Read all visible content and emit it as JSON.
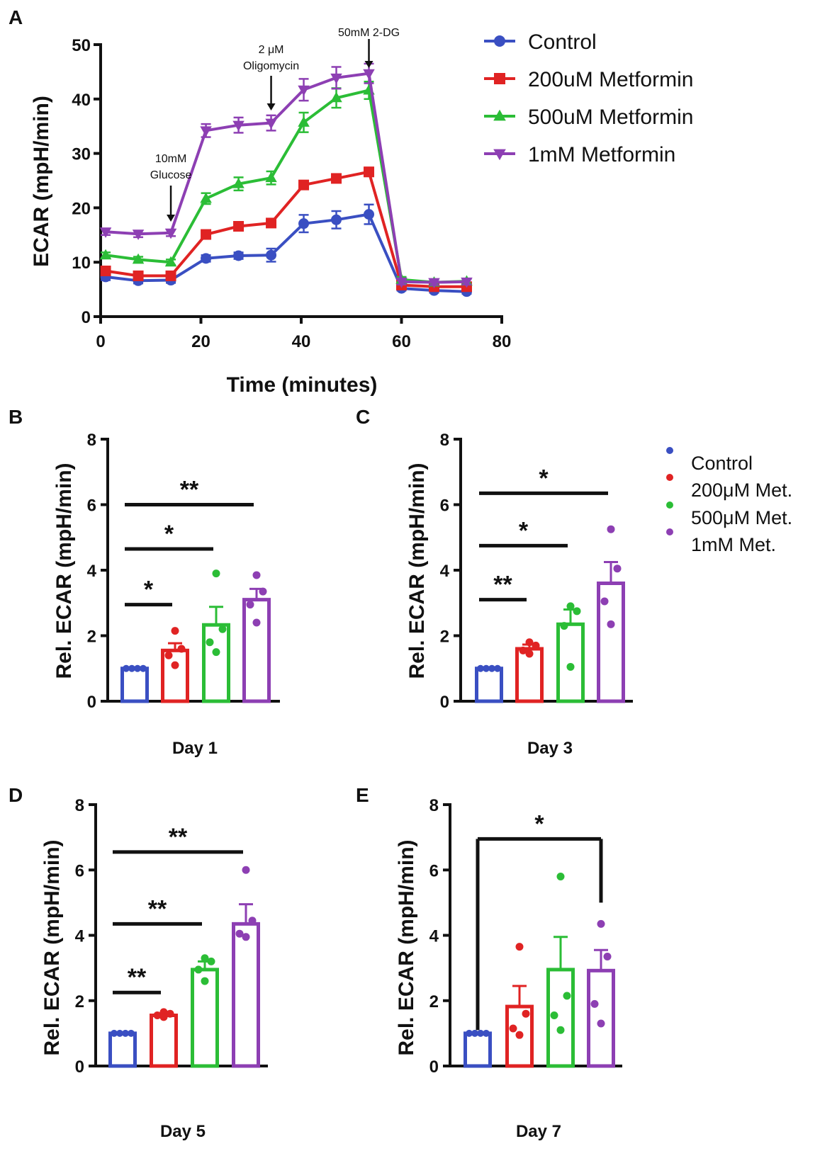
{
  "colors": {
    "control": "#3a4fc2",
    "met200": "#e02323",
    "met500": "#2bbd36",
    "met1mM": "#8d3fb3",
    "axis": "#111111"
  },
  "panel_letters": [
    "A",
    "B",
    "C",
    "D",
    "E"
  ],
  "legend_a": [
    "Control",
    "200uM Metformin",
    "500uM Metformin",
    "1mM Metformin"
  ],
  "legend_b": [
    "Control",
    "200μM Met.",
    "500μM Met.",
    "1mM Met."
  ],
  "chart_data": [
    {
      "panel": "A",
      "type": "line",
      "xlabel": "Time (minutes)",
      "ylabel": "ECAR (mpH/min)",
      "xlim": [
        0,
        80
      ],
      "ylim": [
        0,
        50
      ],
      "xticks": [
        0,
        20,
        40,
        60,
        80
      ],
      "yticks": [
        0,
        10,
        20,
        30,
        40,
        50
      ],
      "x": [
        1,
        7.5,
        14,
        21,
        27.5,
        34,
        40.5,
        47,
        53.5,
        60,
        66.5,
        73
      ],
      "series": [
        {
          "name": "Control",
          "marker": "circle",
          "values": [
            7.3,
            6.6,
            6.7,
            10.7,
            11.2,
            11.3,
            17.1,
            17.8,
            18.8,
            5.2,
            4.8,
            4.6
          ],
          "errors": [
            0.6,
            0.5,
            0.5,
            0.6,
            0.6,
            1.2,
            1.6,
            1.6,
            1.8,
            0.4,
            0.4,
            0.4
          ]
        },
        {
          "name": "200uM Metformin",
          "marker": "square",
          "values": [
            8.4,
            7.5,
            7.5,
            15.1,
            16.6,
            17.2,
            24.2,
            25.4,
            26.6,
            5.8,
            5.5,
            5.5
          ],
          "errors": [
            0.5,
            0.5,
            0.5,
            0.6,
            0.6,
            0.6,
            0.6,
            0.7,
            0.8,
            0.4,
            0.4,
            0.4
          ]
        },
        {
          "name": "500uM Metformin",
          "marker": "triangle-up",
          "values": [
            11.3,
            10.5,
            10.0,
            21.7,
            24.4,
            25.5,
            35.7,
            40.2,
            41.6,
            6.8,
            6.3,
            6.5
          ],
          "errors": [
            0.5,
            0.5,
            0.5,
            1.0,
            1.2,
            1.2,
            1.8,
            1.8,
            1.6,
            0.5,
            0.5,
            0.5
          ]
        },
        {
          "name": "1mM Metformin",
          "marker": "triangle-down",
          "values": [
            15.6,
            15.2,
            15.4,
            34.2,
            35.2,
            35.6,
            41.7,
            43.9,
            44.7,
            6.4,
            6.3,
            6.4
          ],
          "errors": [
            0.6,
            0.6,
            0.6,
            1.2,
            1.4,
            1.4,
            2.0,
            2.0,
            1.8,
            0.5,
            0.5,
            0.5
          ]
        }
      ],
      "annotations": [
        {
          "lines": [
            "10mM",
            "Glucose"
          ],
          "x": 14
        },
        {
          "lines": [
            "2 μM",
            "Oligomycin"
          ],
          "x": 34
        },
        {
          "lines": [
            "50mM 2-DG"
          ],
          "x": 53.5
        }
      ]
    },
    {
      "panel": "B",
      "type": "bar",
      "title": "Day 1",
      "ylabel": "Rel. ECAR (mpH/min)",
      "ylim": [
        0,
        8
      ],
      "yticks": [
        0,
        2,
        4,
        6,
        8
      ],
      "categories": [
        "Control",
        "200μM Met.",
        "500μM Met.",
        "1mM Met."
      ],
      "values": [
        1.0,
        1.55,
        2.33,
        3.1
      ],
      "sem": [
        0.0,
        0.22,
        0.55,
        0.33
      ],
      "points": [
        [
          1,
          1,
          1,
          1
        ],
        [
          2.15,
          1.6,
          1.4,
          1.1
        ],
        [
          3.9,
          2.2,
          1.8,
          1.5
        ],
        [
          3.85,
          3.35,
          2.95,
          2.4
        ]
      ],
      "significance": [
        {
          "label": "*",
          "y": 2.95,
          "from": 0,
          "to": 1
        },
        {
          "label": "*",
          "y": 4.65,
          "from": 0,
          "to": 2
        },
        {
          "label": "**",
          "y": 6.0,
          "from": 0,
          "to": 3
        }
      ]
    },
    {
      "panel": "C",
      "type": "bar",
      "title": "Day 3",
      "ylabel": "Rel. ECAR (mpH/min)",
      "ylim": [
        0,
        8
      ],
      "yticks": [
        0,
        2,
        4,
        6,
        8
      ],
      "categories": [
        "Control",
        "200μM Met.",
        "500μM Met.",
        "1mM Met."
      ],
      "values": [
        1.0,
        1.6,
        2.35,
        3.6
      ],
      "sem": [
        0.0,
        0.13,
        0.45,
        0.65
      ],
      "points": [
        [
          1,
          1,
          1,
          1
        ],
        [
          1.8,
          1.7,
          1.55,
          1.45
        ],
        [
          2.9,
          2.75,
          2.3,
          1.05
        ],
        [
          5.25,
          4.05,
          3.05,
          2.35
        ]
      ],
      "significance": [
        {
          "label": "**",
          "y": 3.1,
          "from": 0,
          "to": 1
        },
        {
          "label": "*",
          "y": 4.75,
          "from": 0,
          "to": 2
        },
        {
          "label": "*",
          "y": 6.35,
          "from": 0,
          "to": 3
        }
      ]
    },
    {
      "panel": "D",
      "type": "bar",
      "title": "Day 5",
      "ylabel": "Rel. ECAR (mpH/min)",
      "ylim": [
        0,
        8
      ],
      "yticks": [
        0,
        2,
        4,
        6,
        8
      ],
      "categories": [
        "Control",
        "200μM Met.",
        "500μM Met.",
        "1mM Met."
      ],
      "values": [
        1.0,
        1.55,
        2.95,
        4.35
      ],
      "sem": [
        0.0,
        0.06,
        0.25,
        0.6
      ],
      "points": [
        [
          1,
          1,
          1,
          1
        ],
        [
          1.65,
          1.6,
          1.55,
          1.5
        ],
        [
          3.3,
          3.2,
          2.95,
          2.6
        ],
        [
          6.0,
          4.45,
          4.05,
          3.95
        ]
      ],
      "significance": [
        {
          "label": "**",
          "y": 2.25,
          "from": 0,
          "to": 1
        },
        {
          "label": "**",
          "y": 4.35,
          "from": 0,
          "to": 2
        },
        {
          "label": "**",
          "y": 6.55,
          "from": 0,
          "to": 3
        }
      ]
    },
    {
      "panel": "E",
      "type": "bar",
      "title": "Day 7",
      "ylabel": "Rel. ECAR (mpH/min)",
      "ylim": [
        0,
        8
      ],
      "yticks": [
        0,
        2,
        4,
        6,
        8
      ],
      "categories": [
        "Control",
        "200μM Met.",
        "500μM Met.",
        "1mM Met."
      ],
      "values": [
        1.0,
        1.82,
        2.95,
        2.92
      ],
      "sem": [
        0.0,
        0.63,
        1.0,
        0.63
      ],
      "points": [
        [
          1,
          1,
          1,
          1
        ],
        [
          3.65,
          1.6,
          1.15,
          0.95
        ],
        [
          5.8,
          2.15,
          1.55,
          1.1
        ],
        [
          4.35,
          3.35,
          1.9,
          1.3
        ]
      ],
      "significance": [
        {
          "label": "*",
          "y": 6.95,
          "from": 0,
          "to": 3,
          "bracket": true,
          "to_y": 5.0
        }
      ]
    }
  ]
}
